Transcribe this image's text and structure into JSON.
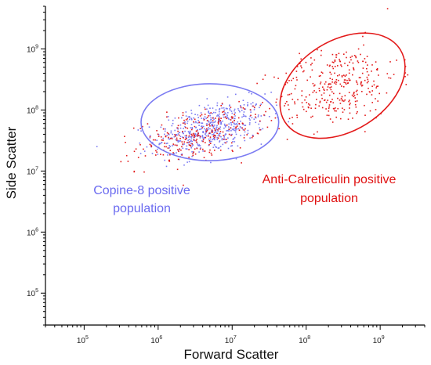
{
  "chart_data": {
    "type": "scatter",
    "title": "",
    "xlabel": "Forward Scatter",
    "ylabel": "Side Scatter",
    "x_scale": "log",
    "y_scale": "log",
    "xlim": [
      30000,
      4000000000
    ],
    "ylim": [
      30000,
      5000000000
    ],
    "grid": false,
    "x_ticks": [
      {
        "base": "10",
        "exp": "5",
        "value": 100000
      },
      {
        "base": "10",
        "exp": "6",
        "value": 1000000
      },
      {
        "base": "10",
        "exp": "7",
        "value": 10000000
      },
      {
        "base": "10",
        "exp": "8",
        "value": 100000000
      },
      {
        "base": "10",
        "exp": "9",
        "value": 1000000000
      }
    ],
    "y_ticks": [
      {
        "base": "10",
        "exp": "5",
        "value": 100000
      },
      {
        "base": "10",
        "exp": "6",
        "value": 1000000
      },
      {
        "base": "10",
        "exp": "7",
        "value": 10000000
      },
      {
        "base": "10",
        "exp": "8",
        "value": 100000000
      },
      {
        "base": "10",
        "exp": "9",
        "value": 1000000000
      }
    ],
    "colors": {
      "copine": "#7b7bf2",
      "calreticulin": "#e31a1a",
      "axis": "#000000"
    },
    "series": [
      {
        "key": "copine",
        "color": "#7b7bf2",
        "clusters": [
          {
            "cx": 5000000,
            "cy": 50000000,
            "sx": 0.38,
            "sy": 0.2,
            "n": 520
          }
        ]
      },
      {
        "key": "calreticulin",
        "color": "#e31a1a",
        "clusters": [
          {
            "cx": 3500000,
            "cy": 40000000,
            "sx": 0.42,
            "sy": 0.2,
            "n": 260
          },
          {
            "cx": 250000000,
            "cy": 250000000,
            "sx": 0.42,
            "sy": 0.32,
            "n": 340
          }
        ]
      }
    ],
    "gates": [
      {
        "name": "copine-gate",
        "color": "#7b7bf2",
        "cx": 5000000,
        "cy": 63000000,
        "rx_decades": 0.93,
        "ry_decades": 0.63,
        "angle_deg": 0
      },
      {
        "name": "calreticulin-gate",
        "color": "#e31a1a",
        "cx": 310000000,
        "cy": 250000000,
        "rx_decades": 0.92,
        "ry_decades": 0.74,
        "angle_deg": -32
      }
    ],
    "annotations": [
      {
        "key": "copine",
        "lines": [
          "Copine-8 positive",
          "population"
        ],
        "color": "#7b7bf2"
      },
      {
        "key": "calreticulin",
        "lines": [
          "Anti-Calreticulin positive",
          "population"
        ],
        "color": "#e31a1a"
      }
    ]
  }
}
